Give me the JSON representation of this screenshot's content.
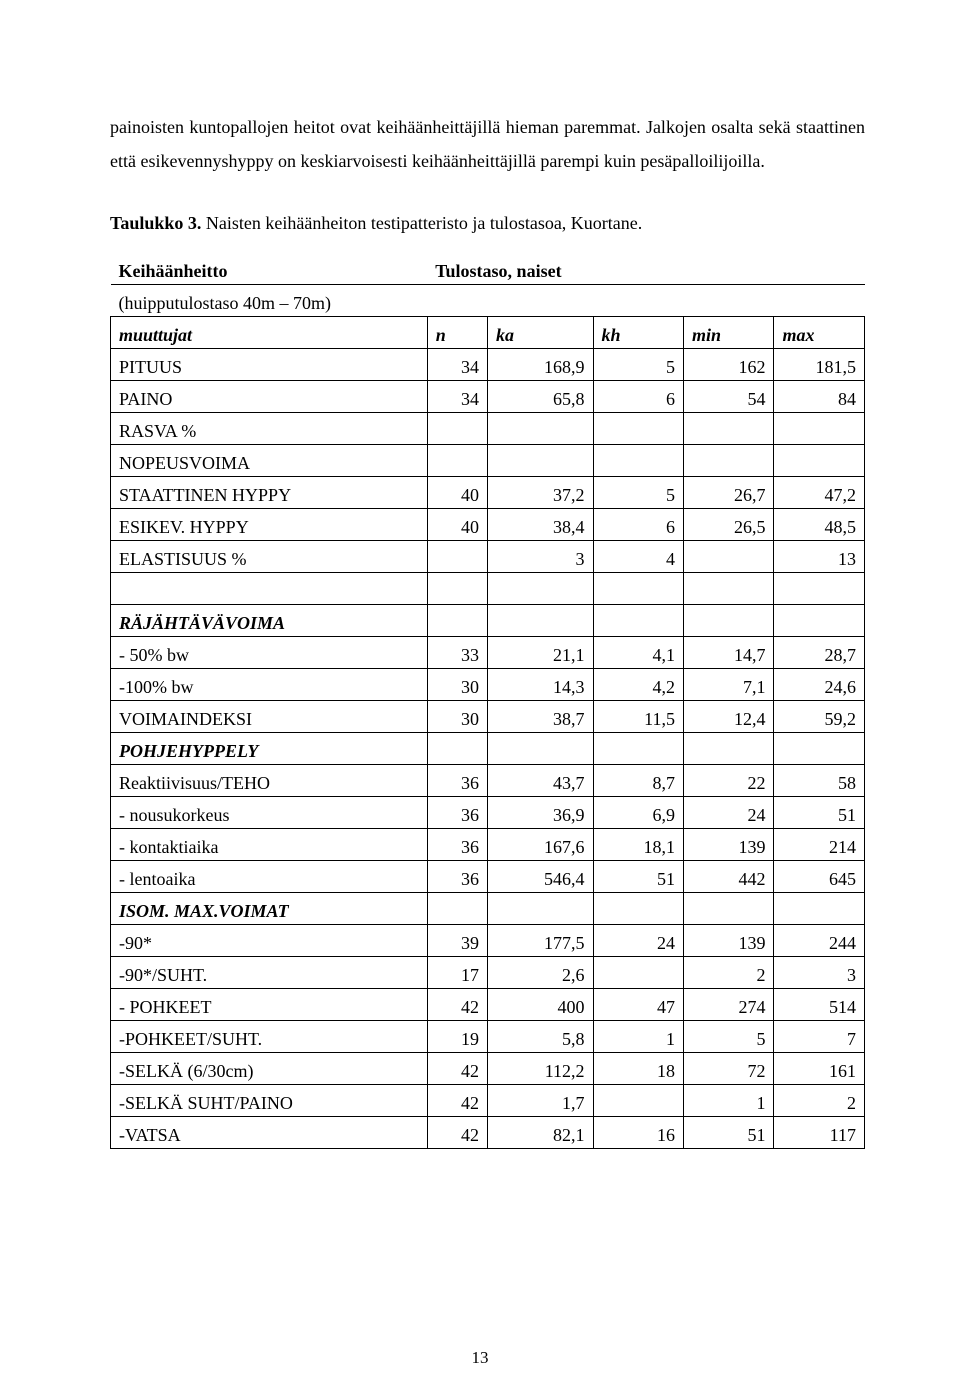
{
  "paragraph": "painoisten kuntopallojen heitot ovat keihäänheittäjillä hieman paremmat. Jalkojen osalta sekä staattinen että esikevennyshyppy on keskiarvoisesti keihäänheittäjillä parempi kuin pesäpalloilijoilla.",
  "table_caption_bold": "Taulukko 3.",
  "table_caption_rest": " Naisten keihäänheiton testipatteristo ja tulostasoa, Kuortane.",
  "table_title_left": "Keihäänheitto",
  "table_title_right": "Tulostaso, naiset",
  "subtitle": "(huipputulostaso 40m – 70m)",
  "headers": {
    "muuttujat": "muuttujat",
    "n": "n",
    "ka": "ka",
    "kh": "kh",
    "min": "min",
    "max": "max"
  },
  "rows": [
    {
      "label": "PITUUS",
      "n": "34",
      "ka": "168,9",
      "kh": "5",
      "min": "162",
      "max": "181,5"
    },
    {
      "label": "PAINO",
      "n": "34",
      "ka": "65,8",
      "kh": "6",
      "min": "54",
      "max": "84"
    },
    {
      "label": "RASVA %",
      "n": "",
      "ka": "",
      "kh": "",
      "min": "",
      "max": ""
    },
    {
      "label": "NOPEUSVOIMA",
      "n": "",
      "ka": "",
      "kh": "",
      "min": "",
      "max": ""
    },
    {
      "label": "STAATTINEN HYPPY",
      "n": "40",
      "ka": "37,2",
      "kh": "5",
      "min": "26,7",
      "max": "47,2"
    },
    {
      "label": "ESIKEV. HYPPY",
      "n": "40",
      "ka": "38,4",
      "kh": "6",
      "min": "26,5",
      "max": "48,5"
    },
    {
      "label": "ELASTISUUS %",
      "n": "",
      "ka": "3",
      "kh": "4",
      "min": "",
      "max": "13"
    },
    {
      "label": "",
      "n": "",
      "ka": "",
      "kh": "",
      "min": "",
      "max": ""
    },
    {
      "label": "RÄJÄHTÄVÄVOIMA",
      "bolditalic": true,
      "n": "",
      "ka": "",
      "kh": "",
      "min": "",
      "max": ""
    },
    {
      "label": "- 50% bw",
      "n": "33",
      "ka": "21,1",
      "kh": "4,1",
      "min": "14,7",
      "max": "28,7"
    },
    {
      "label": "-100% bw",
      "n": "30",
      "ka": "14,3",
      "kh": "4,2",
      "min": "7,1",
      "max": "24,6"
    },
    {
      "label": "VOIMAINDEKSI",
      "n": "30",
      "ka": "38,7",
      "kh": "11,5",
      "min": "12,4",
      "max": "59,2"
    },
    {
      "label": "POHJEHYPPELY",
      "bolditalic": true,
      "n": "",
      "ka": "",
      "kh": "",
      "min": "",
      "max": ""
    },
    {
      "label": "Reaktiivisuus/TEHO",
      "n": "36",
      "ka": "43,7",
      "kh": "8,7",
      "min": "22",
      "max": "58"
    },
    {
      "label": "- nousukorkeus",
      "n": "36",
      "ka": "36,9",
      "kh": "6,9",
      "min": "24",
      "max": "51"
    },
    {
      "label": "- kontaktiaika",
      "n": "36",
      "ka": "167,6",
      "kh": "18,1",
      "min": "139",
      "max": "214"
    },
    {
      "label": "- lentoaika",
      "n": "36",
      "ka": "546,4",
      "kh": "51",
      "min": "442",
      "max": "645"
    },
    {
      "label": "ISOM. MAX.VOIMAT",
      "bolditalic": true,
      "n": "",
      "ka": "",
      "kh": "",
      "min": "",
      "max": ""
    },
    {
      "label": "-90*",
      "n": "39",
      "ka": "177,5",
      "kh": "24",
      "min": "139",
      "max": "244"
    },
    {
      "label": "-90*/SUHT.",
      "n": "17",
      "ka": "2,6",
      "kh": "",
      "min": "2",
      "max": "3"
    },
    {
      "label": "- POHKEET",
      "n": "42",
      "ka": "400",
      "kh": "47",
      "min": "274",
      "max": "514"
    },
    {
      "label": "-POHKEET/SUHT.",
      "n": "19",
      "ka": "5,8",
      "kh": "1",
      "min": "5",
      "max": "7"
    },
    {
      "label": "-SELKÄ (6/30cm)",
      "n": "42",
      "ka": "112,2",
      "kh": "18",
      "min": "72",
      "max": "161"
    },
    {
      "label": "-SELKÄ SUHT/PAINO",
      "n": "42",
      "ka": "1,7",
      "kh": "",
      "min": "1",
      "max": "2"
    },
    {
      "label": "-VATSA",
      "n": "42",
      "ka": "82,1",
      "kh": "16",
      "min": "51",
      "max": "117"
    }
  ],
  "page_number": "13"
}
